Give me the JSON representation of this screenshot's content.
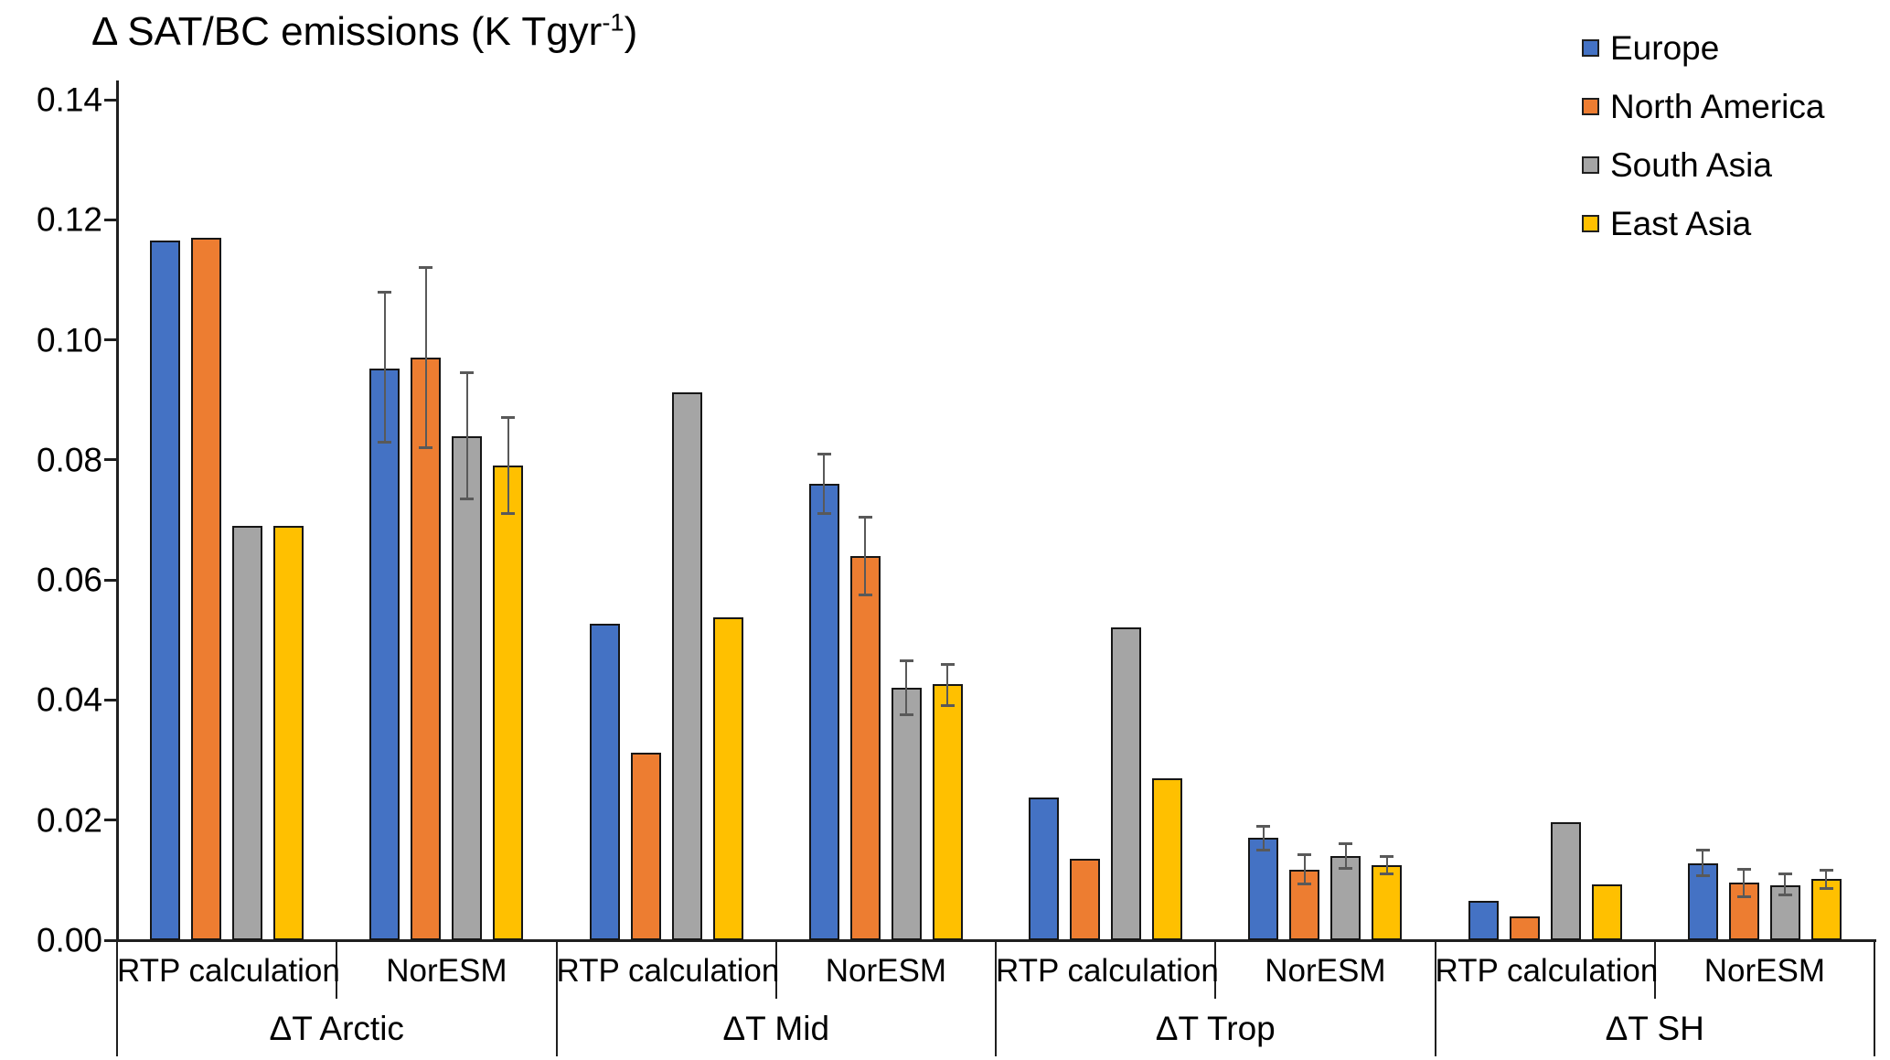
{
  "title": {
    "main": "Δ SAT/BC emissions (K Tgyr",
    "sup": "-1",
    "close": ")"
  },
  "legend": {
    "position": "top-right",
    "items": [
      {
        "label": "Europe",
        "color": "#4472C4"
      },
      {
        "label": "North America",
        "color": "#ED7D31"
      },
      {
        "label": "South Asia",
        "color": "#A5A5A5"
      },
      {
        "label": "East Asia",
        "color": "#FFC000"
      }
    ]
  },
  "chart_data": {
    "type": "bar",
    "title": "Δ SAT/BC emissions (K Tgyr-1)",
    "ylabel": "Δ SAT/BC emissions (K Tgyr-1)",
    "ylim": [
      0,
      0.14
    ],
    "y_ticks": [
      "0.00",
      "0.02",
      "0.04",
      "0.06",
      "0.08",
      "0.10",
      "0.12",
      "0.14"
    ],
    "grid": false,
    "legend_position": "top-right",
    "groups": [
      "ΔT Arctic",
      "ΔT Mid",
      "ΔT Trop",
      "ΔT SH"
    ],
    "subgroups": [
      "RTP calculation",
      "NorESM"
    ],
    "columns": [
      "ΔT Arctic / RTP calculation",
      "ΔT Arctic / NorESM",
      "ΔT Mid / RTP calculation",
      "ΔT Mid / NorESM",
      "ΔT Trop / RTP calculation",
      "ΔT Trop / NorESM",
      "ΔT SH / RTP calculation",
      "ΔT SH / NorESM"
    ],
    "error_bars_note": "error bars present only on NorESM columns",
    "series": [
      {
        "name": "Europe",
        "color": "#4472C4",
        "values": [
          0.1165,
          0.0952,
          0.0527,
          0.076,
          0.0237,
          0.017,
          0.0065,
          0.0128
        ],
        "error_low": [
          null,
          0.083,
          null,
          0.071,
          null,
          0.015,
          null,
          0.0107
        ],
        "error_high": [
          null,
          0.108,
          null,
          0.081,
          null,
          0.019,
          null,
          0.015
        ]
      },
      {
        "name": "North America",
        "color": "#ED7D31",
        "values": [
          0.117,
          0.097,
          0.0312,
          0.064,
          0.0135,
          0.0118,
          0.004,
          0.0096
        ],
        "error_low": [
          null,
          0.082,
          null,
          0.0575,
          null,
          0.0093,
          null,
          0.0072
        ],
        "error_high": [
          null,
          0.112,
          null,
          0.0705,
          null,
          0.0142,
          null,
          0.0118
        ]
      },
      {
        "name": "South Asia",
        "color": "#A5A5A5",
        "values": [
          0.069,
          0.084,
          0.0912,
          0.042,
          0.0521,
          0.014,
          0.0196,
          0.0092
        ],
        "error_low": [
          null,
          0.0735,
          null,
          0.0375,
          null,
          0.012,
          null,
          0.0075
        ],
        "error_high": [
          null,
          0.0945,
          null,
          0.0465,
          null,
          0.016,
          null,
          0.011
        ]
      },
      {
        "name": "East Asia",
        "color": "#FFC000",
        "values": [
          0.069,
          0.079,
          0.0537,
          0.0427,
          0.027,
          0.0125,
          0.0093,
          0.0102
        ],
        "error_low": [
          null,
          0.071,
          null,
          0.039,
          null,
          0.011,
          null,
          0.0086
        ],
        "error_high": [
          null,
          0.087,
          null,
          0.046,
          null,
          0.014,
          null,
          0.0116
        ]
      }
    ]
  }
}
